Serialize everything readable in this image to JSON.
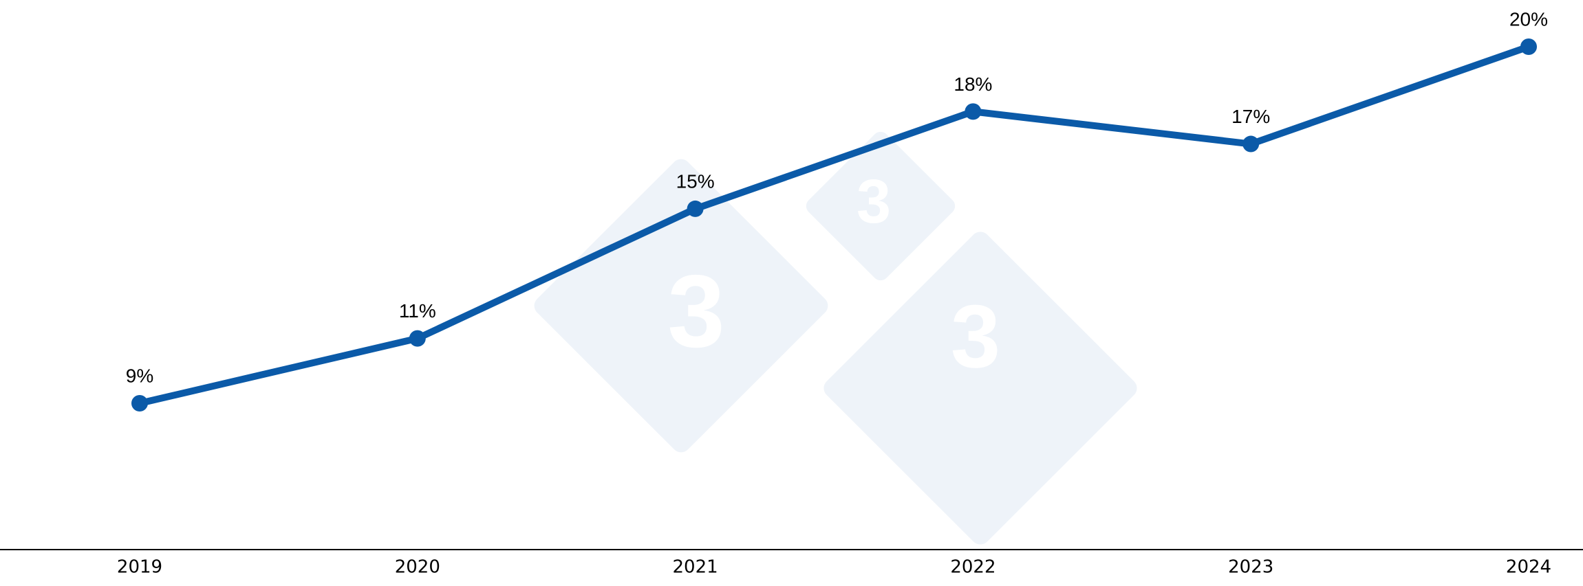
{
  "chart_data": {
    "type": "line",
    "categories": [
      "2019",
      "2020",
      "2021",
      "2022",
      "2023",
      "2024"
    ],
    "series": [
      {
        "color": "#0b5aa8",
        "values": [
          9,
          11,
          15,
          18,
          17,
          20
        ],
        "value_labels": [
          "9%",
          "11%",
          "15%",
          "18%",
          "17%",
          "20%"
        ]
      }
    ]
  }
}
